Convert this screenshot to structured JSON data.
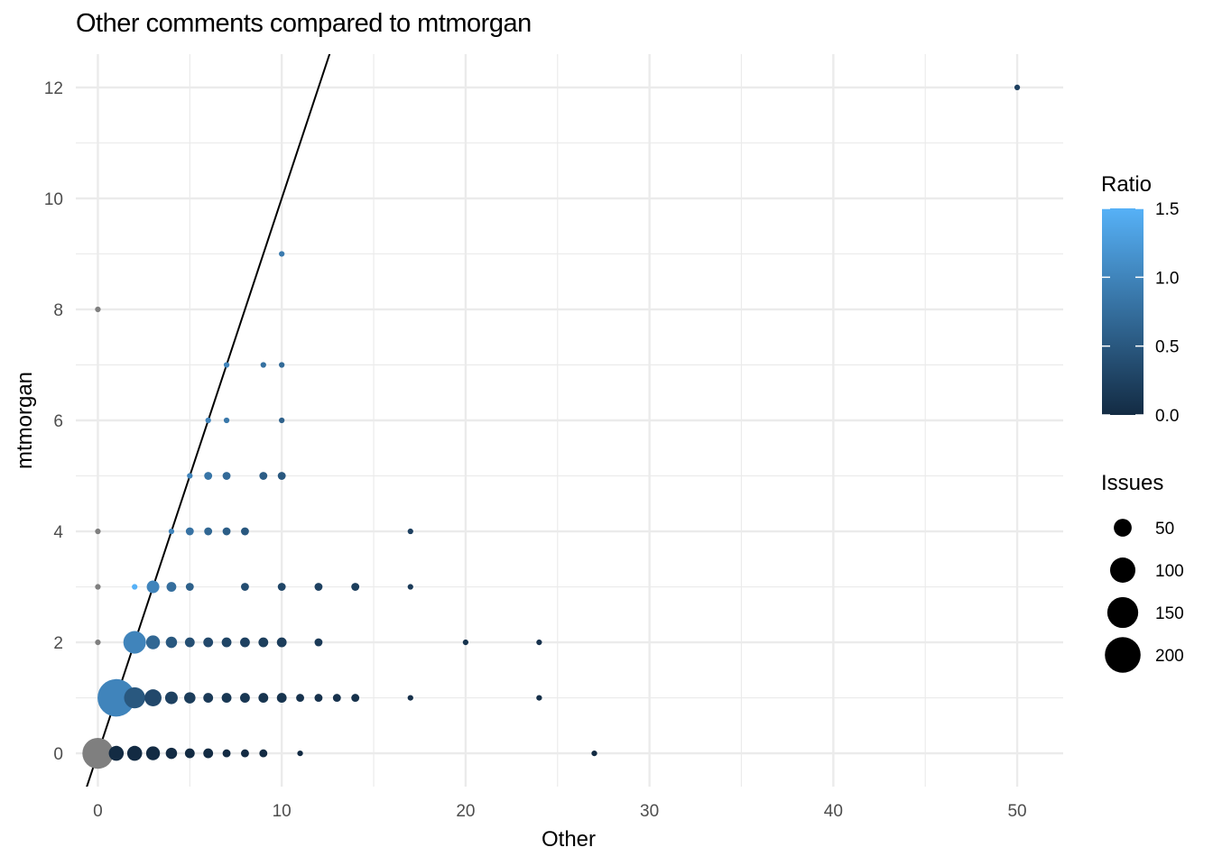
{
  "chart_data": {
    "type": "scatter",
    "title": "Other comments compared to mtmorgan",
    "xlabel": "Other",
    "ylabel": "mtmorgan",
    "xlim": [
      -1.2,
      52.5
    ],
    "ylim": [
      -0.6,
      12.6
    ],
    "x_ticks": [
      0,
      10,
      20,
      30,
      40,
      50
    ],
    "y_ticks": [
      0,
      2,
      4,
      6,
      8,
      10,
      12
    ],
    "grid": true,
    "reference_line": {
      "type": "y = x",
      "intercept": 0,
      "slope": 1,
      "color": "#000000"
    },
    "legend_placement": "right",
    "color_legend": {
      "title": "Ratio",
      "min": 0.0,
      "max": 1.5,
      "ticks": [
        0.0,
        0.5,
        1.0,
        1.5
      ],
      "tick_labels": [
        "0.0",
        "0.5",
        "1.0",
        "1.5"
      ],
      "low_color": "#132b43",
      "high_color": "#56b1f7",
      "na_color": "#7f7f7f"
    },
    "size_legend": {
      "title": "Issues",
      "values": [
        50,
        100,
        150,
        200
      ],
      "labels": [
        "50",
        "100",
        "150",
        "200"
      ]
    },
    "points": [
      {
        "x": 0,
        "y": 0,
        "issues": 150,
        "ratio": null
      },
      {
        "x": 1,
        "y": 0,
        "issues": 35,
        "ratio": 0
      },
      {
        "x": 2,
        "y": 0,
        "issues": 35,
        "ratio": 0
      },
      {
        "x": 3,
        "y": 0,
        "issues": 30,
        "ratio": 0
      },
      {
        "x": 4,
        "y": 0,
        "issues": 20,
        "ratio": 0
      },
      {
        "x": 5,
        "y": 0,
        "issues": 15,
        "ratio": 0
      },
      {
        "x": 6,
        "y": 0,
        "issues": 15,
        "ratio": 0
      },
      {
        "x": 7,
        "y": 0,
        "issues": 10,
        "ratio": 0
      },
      {
        "x": 8,
        "y": 0,
        "issues": 10,
        "ratio": 0
      },
      {
        "x": 9,
        "y": 0,
        "issues": 10,
        "ratio": 0
      },
      {
        "x": 11,
        "y": 0,
        "issues": 5,
        "ratio": 0
      },
      {
        "x": 27,
        "y": 0,
        "issues": 5,
        "ratio": 0
      },
      {
        "x": 1,
        "y": 1,
        "issues": 220,
        "ratio": 1.0
      },
      {
        "x": 2,
        "y": 1,
        "issues": 70,
        "ratio": 0.5
      },
      {
        "x": 3,
        "y": 1,
        "issues": 45,
        "ratio": 0.33
      },
      {
        "x": 4,
        "y": 1,
        "issues": 25,
        "ratio": 0.25
      },
      {
        "x": 5,
        "y": 1,
        "issues": 20,
        "ratio": 0.2
      },
      {
        "x": 6,
        "y": 1,
        "issues": 15,
        "ratio": 0.17
      },
      {
        "x": 7,
        "y": 1,
        "issues": 15,
        "ratio": 0.14
      },
      {
        "x": 8,
        "y": 1,
        "issues": 15,
        "ratio": 0.13
      },
      {
        "x": 9,
        "y": 1,
        "issues": 15,
        "ratio": 0.11
      },
      {
        "x": 10,
        "y": 1,
        "issues": 15,
        "ratio": 0.1
      },
      {
        "x": 11,
        "y": 1,
        "issues": 10,
        "ratio": 0.09
      },
      {
        "x": 12,
        "y": 1,
        "issues": 10,
        "ratio": 0.08
      },
      {
        "x": 13,
        "y": 1,
        "issues": 10,
        "ratio": 0.08
      },
      {
        "x": 14,
        "y": 1,
        "issues": 10,
        "ratio": 0.07
      },
      {
        "x": 17,
        "y": 1,
        "issues": 5,
        "ratio": 0.06
      },
      {
        "x": 24,
        "y": 1,
        "issues": 5,
        "ratio": 0.04
      },
      {
        "x": 0,
        "y": 2,
        "issues": 5,
        "ratio": null
      },
      {
        "x": 2,
        "y": 2,
        "issues": 80,
        "ratio": 1.0
      },
      {
        "x": 3,
        "y": 2,
        "issues": 30,
        "ratio": 0.67
      },
      {
        "x": 4,
        "y": 2,
        "issues": 20,
        "ratio": 0.5
      },
      {
        "x": 5,
        "y": 2,
        "issues": 15,
        "ratio": 0.4
      },
      {
        "x": 6,
        "y": 2,
        "issues": 15,
        "ratio": 0.33
      },
      {
        "x": 7,
        "y": 2,
        "issues": 15,
        "ratio": 0.29
      },
      {
        "x": 8,
        "y": 2,
        "issues": 15,
        "ratio": 0.25
      },
      {
        "x": 9,
        "y": 2,
        "issues": 15,
        "ratio": 0.22
      },
      {
        "x": 10,
        "y": 2,
        "issues": 15,
        "ratio": 0.2
      },
      {
        "x": 12,
        "y": 2,
        "issues": 10,
        "ratio": 0.17
      },
      {
        "x": 20,
        "y": 2,
        "issues": 5,
        "ratio": 0.1
      },
      {
        "x": 24,
        "y": 2,
        "issues": 5,
        "ratio": 0.08
      },
      {
        "x": 0,
        "y": 3,
        "issues": 5,
        "ratio": null
      },
      {
        "x": 2,
        "y": 3,
        "issues": 5,
        "ratio": 1.5
      },
      {
        "x": 3,
        "y": 3,
        "issues": 25,
        "ratio": 1.0
      },
      {
        "x": 4,
        "y": 3,
        "issues": 15,
        "ratio": 0.75
      },
      {
        "x": 5,
        "y": 3,
        "issues": 10,
        "ratio": 0.6
      },
      {
        "x": 8,
        "y": 3,
        "issues": 10,
        "ratio": 0.38
      },
      {
        "x": 10,
        "y": 3,
        "issues": 10,
        "ratio": 0.3
      },
      {
        "x": 12,
        "y": 3,
        "issues": 10,
        "ratio": 0.25
      },
      {
        "x": 14,
        "y": 3,
        "issues": 10,
        "ratio": 0.21
      },
      {
        "x": 17,
        "y": 3,
        "issues": 5,
        "ratio": 0.18
      },
      {
        "x": 0,
        "y": 4,
        "issues": 5,
        "ratio": null
      },
      {
        "x": 4,
        "y": 4,
        "issues": 5,
        "ratio": 1.0
      },
      {
        "x": 5,
        "y": 4,
        "issues": 10,
        "ratio": 0.8
      },
      {
        "x": 6,
        "y": 4,
        "issues": 10,
        "ratio": 0.67
      },
      {
        "x": 7,
        "y": 4,
        "issues": 10,
        "ratio": 0.57
      },
      {
        "x": 8,
        "y": 4,
        "issues": 10,
        "ratio": 0.5
      },
      {
        "x": 17,
        "y": 4,
        "issues": 5,
        "ratio": 0.24
      },
      {
        "x": 5,
        "y": 5,
        "issues": 5,
        "ratio": 1.0
      },
      {
        "x": 6,
        "y": 5,
        "issues": 10,
        "ratio": 0.83
      },
      {
        "x": 7,
        "y": 5,
        "issues": 10,
        "ratio": 0.71
      },
      {
        "x": 9,
        "y": 5,
        "issues": 10,
        "ratio": 0.56
      },
      {
        "x": 10,
        "y": 5,
        "issues": 10,
        "ratio": 0.5
      },
      {
        "x": 6,
        "y": 6,
        "issues": 5,
        "ratio": 1.0
      },
      {
        "x": 7,
        "y": 6,
        "issues": 5,
        "ratio": 0.86
      },
      {
        "x": 10,
        "y": 6,
        "issues": 5,
        "ratio": 0.6
      },
      {
        "x": 7,
        "y": 7,
        "issues": 5,
        "ratio": 1.0
      },
      {
        "x": 9,
        "y": 7,
        "issues": 5,
        "ratio": 0.78
      },
      {
        "x": 10,
        "y": 7,
        "issues": 5,
        "ratio": 0.7
      },
      {
        "x": 0,
        "y": 8,
        "issues": 5,
        "ratio": null
      },
      {
        "x": 10,
        "y": 9,
        "issues": 5,
        "ratio": 0.9
      },
      {
        "x": 50,
        "y": 12,
        "issues": 5,
        "ratio": 0.24
      }
    ]
  }
}
